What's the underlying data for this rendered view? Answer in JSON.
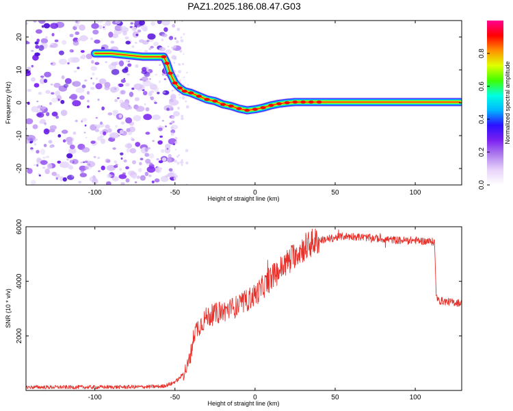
{
  "figure_title": "PAZ1.2025.186.08.47.G03",
  "chart_data": [
    {
      "type": "heatmap",
      "title": "PAZ1.2025.186.08.47.G03",
      "xlabel": "Height of straight line (km)",
      "ylabel": "Frequency (Hz)",
      "xlim": [
        -143,
        129
      ],
      "ylim": [
        -25,
        25
      ],
      "x_ticks": [
        -100,
        -50,
        0,
        50,
        100
      ],
      "y_ticks": [
        -20,
        -10,
        0,
        10,
        20
      ],
      "ridge": {
        "x": [
          -100,
          -90,
          -80,
          -70,
          -62,
          -57,
          -55,
          -53,
          -50,
          -47,
          -44,
          -40,
          -35,
          -30,
          -25,
          -20,
          -15,
          -10,
          -5,
          0,
          5,
          10,
          15,
          20,
          25,
          30,
          35,
          40,
          128
        ],
        "y": [
          15,
          15,
          14.5,
          14,
          14,
          14,
          12,
          9,
          6,
          4.5,
          3.5,
          3,
          2,
          1,
          0.5,
          -0.5,
          -1,
          -1.8,
          -2.3,
          -2,
          -1.5,
          -0.8,
          -0.3,
          0,
          0.2,
          0.2,
          0.2,
          0.2,
          0.2
        ]
      },
      "noise_region_x": [
        -143,
        -52
      ],
      "colorbar": {
        "label": "Normalized spectral amplitude",
        "range": [
          0,
          1
        ],
        "ticks": [
          0.0,
          0.2,
          0.4,
          0.6,
          0.8
        ],
        "tick_labels": [
          "0.0",
          "0.2",
          "0.4",
          "0.6",
          "0.8"
        ],
        "colormap": [
          "#ffffff",
          "#e8d4fa",
          "#b080ee",
          "#7a20f0",
          "#2a10ff",
          "#00b8ff",
          "#00ffe0",
          "#40ff00",
          "#e0ff00",
          "#ff9000",
          "#ff0000",
          "#ff0090"
        ]
      },
      "grid": false
    },
    {
      "type": "line",
      "xlabel": "Height of straight line (km)",
      "ylabel": "SNR (10 * v/v)",
      "xlim": [
        -143,
        129
      ],
      "ylim": [
        0,
        6000
      ],
      "x_ticks": [
        -100,
        -50,
        0,
        50,
        100
      ],
      "y_ticks": [
        2000,
        4000,
        6000
      ],
      "line_color": "#e8302a",
      "series": [
        {
          "x": [
            -143,
            -100,
            -70,
            -58,
            -52,
            -48,
            -45,
            -42,
            -40,
            -38,
            -36,
            -33,
            -30,
            -25,
            -20,
            -15,
            -10,
            -5,
            0,
            5,
            10,
            15,
            20,
            25,
            30,
            35,
            40,
            45,
            50,
            55,
            60,
            70,
            80,
            90,
            100,
            110,
            112,
            113,
            114,
            120,
            129
          ],
          "y": [
            120,
            120,
            130,
            150,
            250,
            400,
            600,
            900,
            1400,
            2100,
            2300,
            2500,
            2700,
            2800,
            2900,
            3000,
            3100,
            3300,
            3500,
            3800,
            4100,
            4400,
            4700,
            5000,
            5200,
            5400,
            5500,
            5550,
            5600,
            5650,
            5650,
            5600,
            5550,
            5500,
            5500,
            5450,
            5450,
            3600,
            3300,
            3250,
            3200
          ]
        }
      ],
      "grid": false
    }
  ]
}
